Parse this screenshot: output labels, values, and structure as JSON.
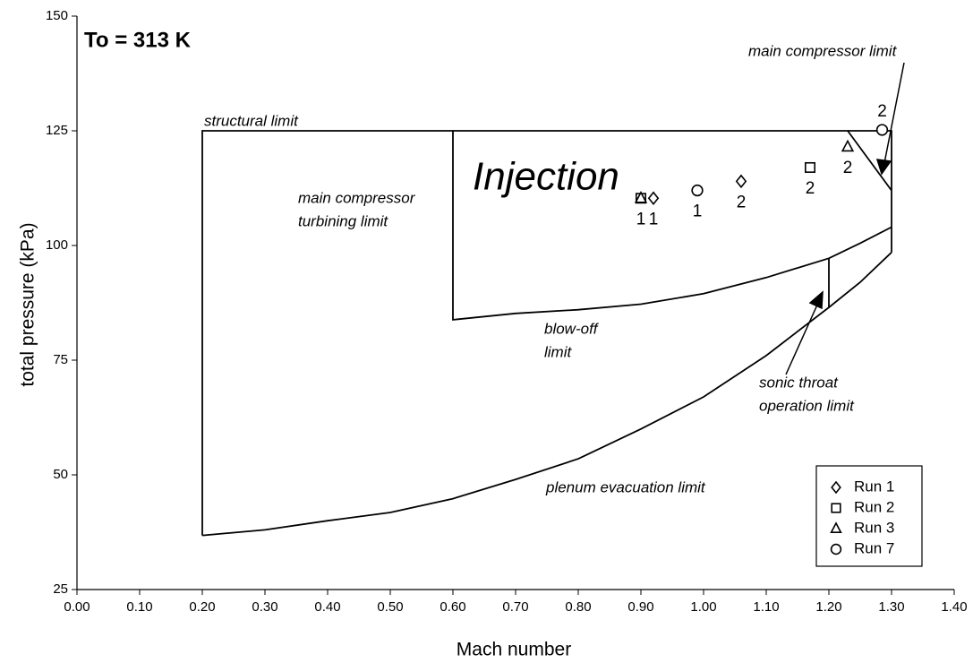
{
  "chart_data": {
    "type": "scatter",
    "title": "To = 313 K",
    "region_label": "Injection",
    "x_label": "Mach number",
    "y_label": "total pressure (kPa)",
    "xlim": [
      0,
      1.4
    ],
    "ylim": [
      25,
      150
    ],
    "xticks": [
      {
        "value": 0,
        "label": "0.00"
      },
      {
        "value": 0.1,
        "label": "0.10"
      },
      {
        "value": 0.2,
        "label": "0.20"
      },
      {
        "value": 0.3,
        "label": "0.30"
      },
      {
        "value": 0.4,
        "label": "0.40"
      },
      {
        "value": 0.5,
        "label": "0.50"
      },
      {
        "value": 0.6,
        "label": "0.60"
      },
      {
        "value": 0.7,
        "label": "0.70"
      },
      {
        "value": 0.8,
        "label": "0.80"
      },
      {
        "value": 0.9,
        "label": "0.90"
      },
      {
        "value": 1.0,
        "label": "1.00"
      },
      {
        "value": 1.1,
        "label": "1.10"
      },
      {
        "value": 1.2,
        "label": "1.20"
      },
      {
        "value": 1.3,
        "label": "1.30"
      },
      {
        "value": 1.4,
        "label": "1.40"
      }
    ],
    "yticks": [
      25,
      50,
      75,
      100,
      125,
      150
    ],
    "grid": false,
    "legend": "bottom-right",
    "boundaries": [
      {
        "x": [
          0.2,
          0.3,
          0.4,
          0.5,
          0.6,
          0.7,
          0.8,
          0.9,
          1.0,
          1.1,
          1.2,
          1.25,
          1.3
        ],
        "values": [
          36.8,
          38,
          40,
          41.8,
          44.8,
          49,
          53.5,
          60,
          67,
          76,
          86.5,
          92,
          98.5
        ]
      },
      {
        "x": [
          0.2,
          0.2,
          1.3,
          1.3
        ],
        "values": [
          36.8,
          125,
          125,
          98.5
        ]
      },
      {
        "x": [
          0.6,
          0.6,
          0.7,
          0.8,
          0.9,
          1.0,
          1.1,
          1.2,
          1.25,
          1.3
        ],
        "values": [
          125,
          83.8,
          85.2,
          86,
          87.2,
          89.5,
          93,
          97.2,
          100.5,
          104
        ]
      },
      {
        "x": [
          1.2,
          1.2
        ],
        "values": [
          97.2,
          86.5
        ]
      },
      {
        "x": [
          1.23,
          1.3
        ],
        "values": [
          125,
          112
        ]
      }
    ],
    "annotations": [
      [
        "structural limit"
      ],
      [
        "main compressor",
        "turbining limit"
      ],
      [
        "blow-off",
        "limit"
      ],
      [
        "sonic throat",
        "operation limit"
      ],
      [
        "plenum evacuation limit"
      ],
      [
        "main compressor limit"
      ]
    ],
    "series": [
      {
        "name": "Run 1",
        "marker": "diamond",
        "color": "#000000",
        "x": [
          0.92,
          1.06
        ],
        "values": [
          110.3,
          114
        ],
        "point_labels": [
          "1",
          "2"
        ]
      },
      {
        "name": "Run 2",
        "marker": "square",
        "color": "#000000",
        "x": [
          0.9,
          1.17
        ],
        "values": [
          110.3,
          117
        ],
        "point_labels": [
          "1",
          "2"
        ]
      },
      {
        "name": "Run 3",
        "marker": "triangle",
        "color": "#000000",
        "x": [
          0.9,
          1.23
        ],
        "values": [
          110.3,
          121.5
        ],
        "point_labels": [
          null,
          "2"
        ]
      },
      {
        "name": "Run 7",
        "marker": "circle",
        "color": "#000000",
        "x": [
          0.99,
          1.285
        ],
        "values": [
          112,
          125.2
        ],
        "point_labels": [
          "1",
          "2"
        ]
      }
    ]
  }
}
